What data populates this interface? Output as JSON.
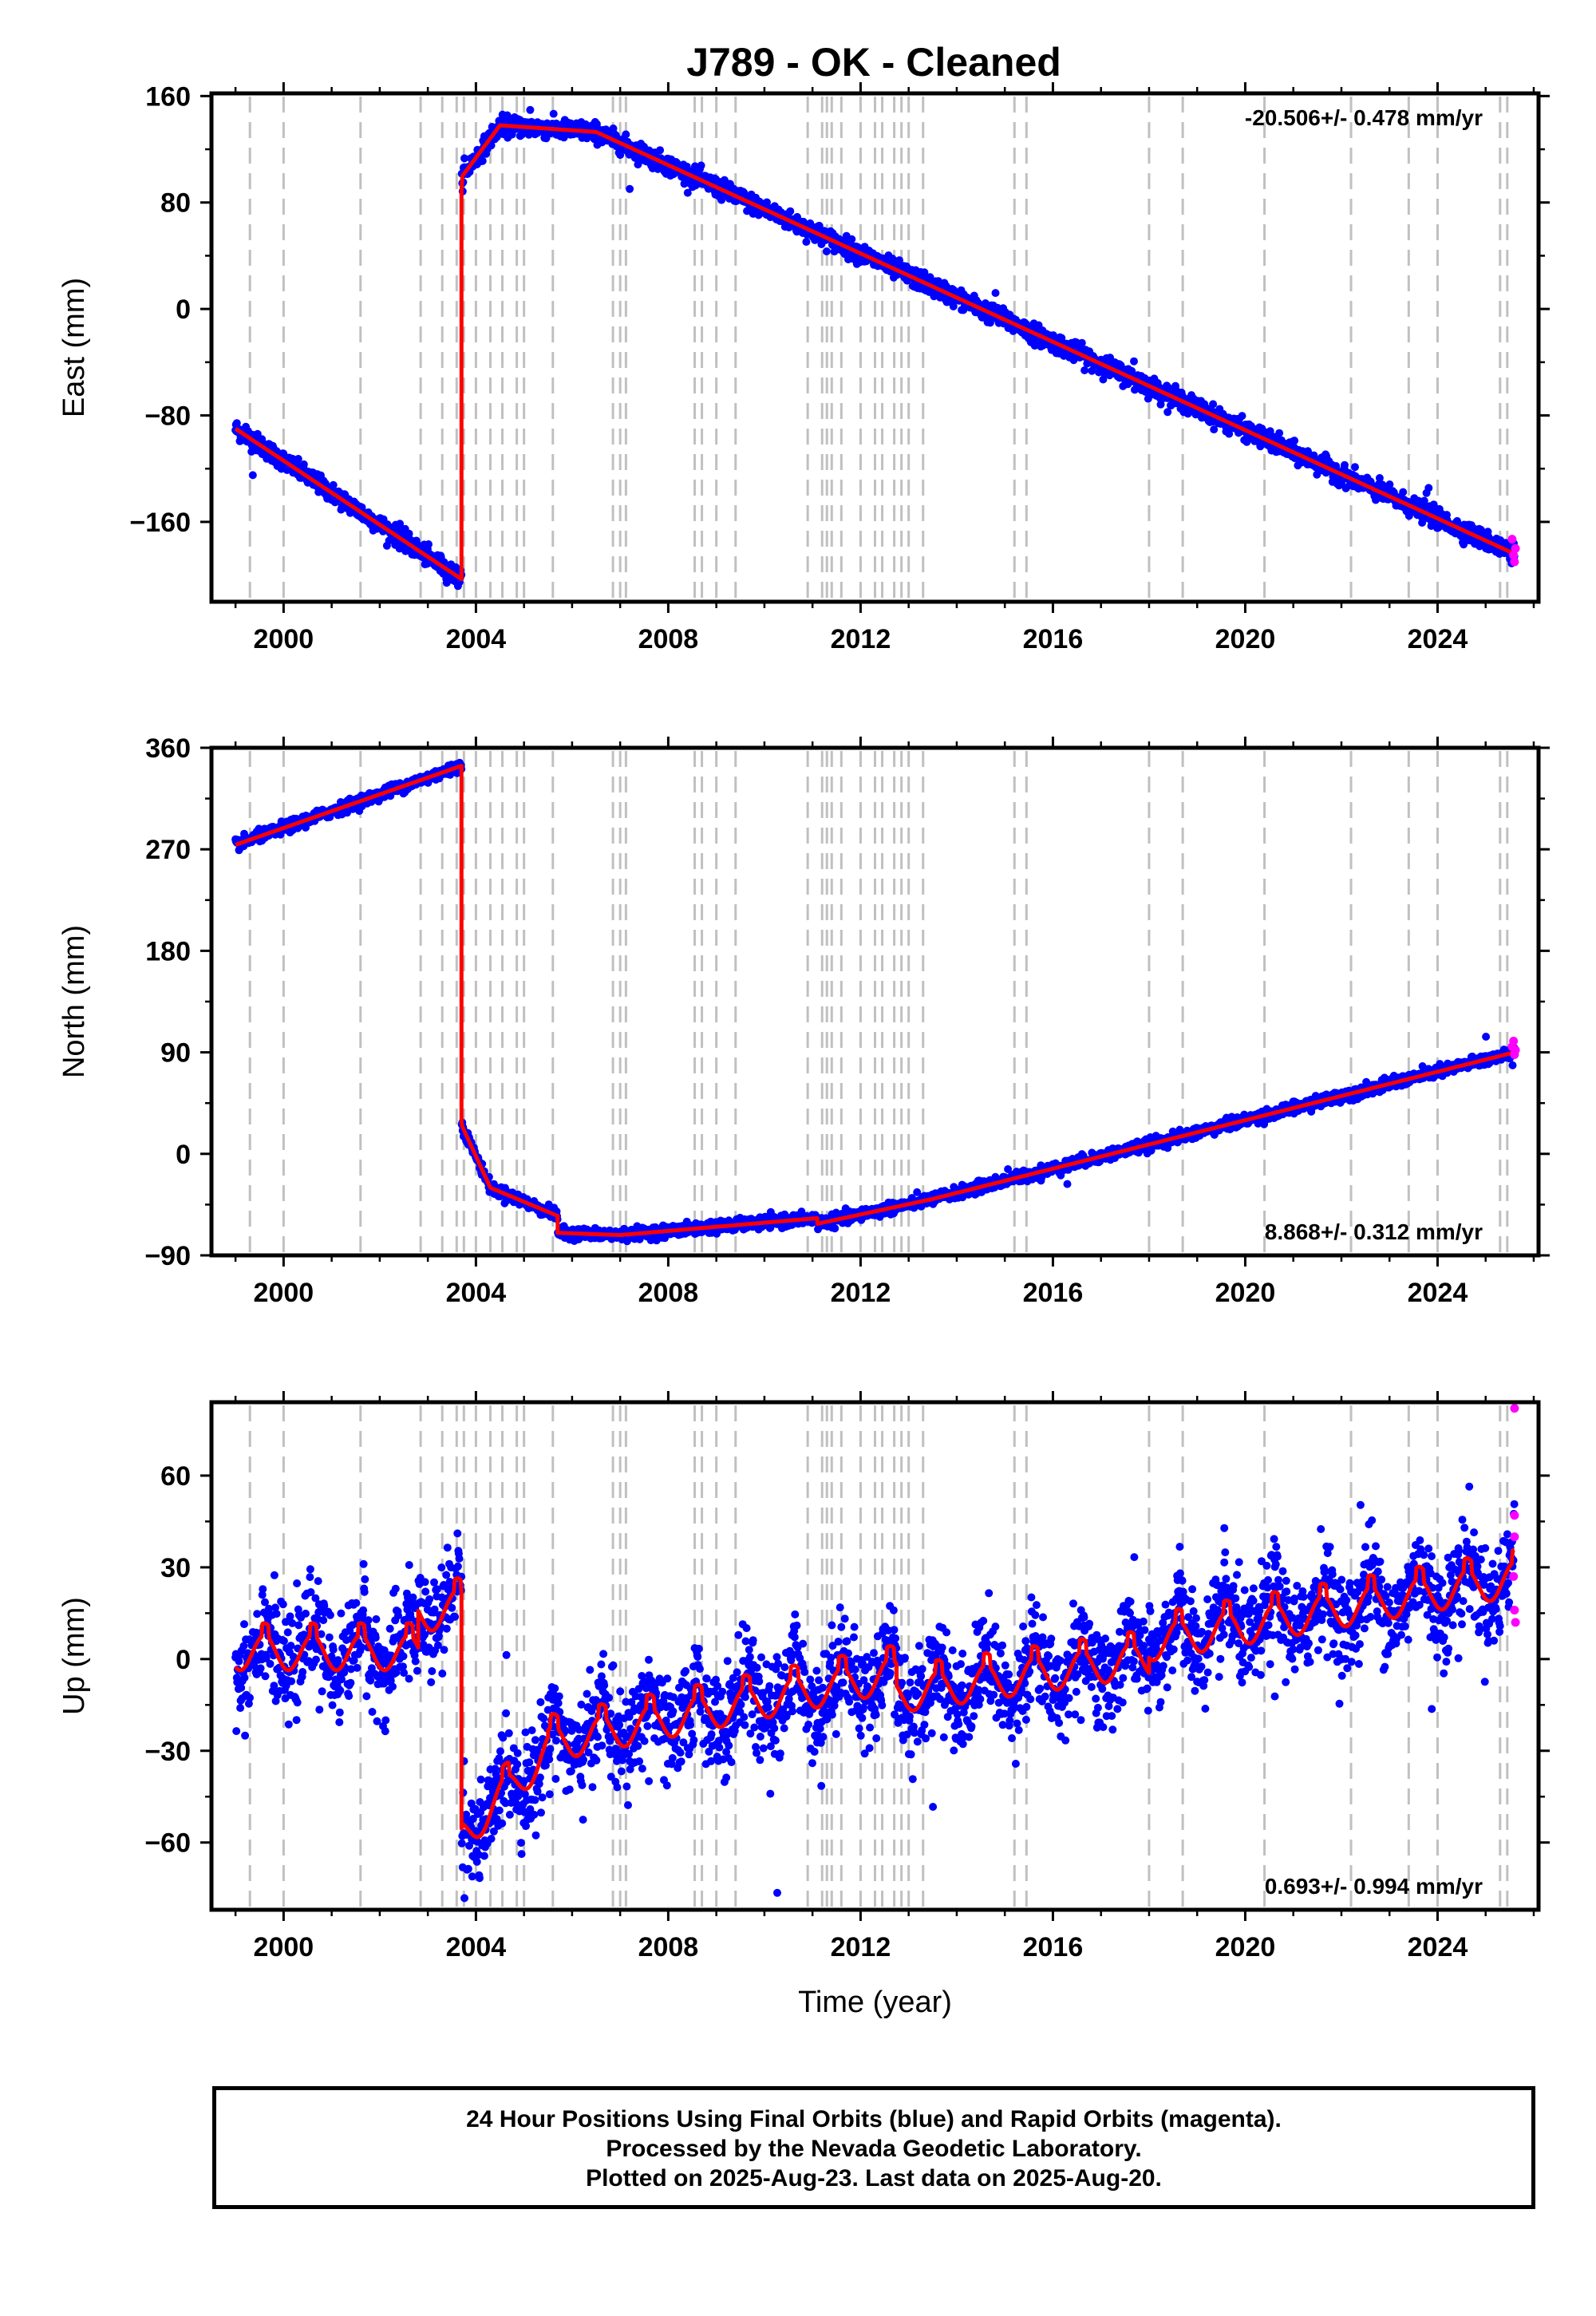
{
  "title": "J789  - OK - Cleaned",
  "footer": {
    "line1": "24 Hour Positions Using Final Orbits (blue) and Rapid Orbits (magenta).",
    "line2": "Processed by the Nevada Geodetic Laboratory.",
    "line3": "Plotted on 2025-Aug-23. Last data on 2025-Aug-20."
  },
  "colors": {
    "final": "#0000ff",
    "rapid": "#ff00ff",
    "model": "#ff0000",
    "event_lines": "#c0c0c0",
    "frame": "#000000"
  },
  "chart_data": [
    {
      "type": "scatter",
      "component": "east",
      "ylabel": "East (mm)",
      "xlabel": "",
      "xlim": [
        1998.5,
        2026.1
      ],
      "ylim": [
        -220,
        162
      ],
      "xticks": [
        2000,
        2004,
        2008,
        2012,
        2016,
        2020,
        2024
      ],
      "yticks": [
        -160,
        -80,
        0,
        80,
        160
      ],
      "ytick_labels": [
        "−160",
        "−80",
        "0",
        "80",
        "160"
      ],
      "rate_text": "-20.506+/- 0.478 mm/yr",
      "rate_position": "top-right",
      "grid": false,
      "model_trend": {
        "segments": [
          {
            "x": [
              1999.0,
              2003.7
            ],
            "y": [
              -90,
              -203
            ]
          },
          {
            "x": [
              2003.7,
              2003.72
            ],
            "y": [
              90,
              100
            ]
          },
          {
            "x": [
              2003.72,
              2004.5
            ],
            "y": [
              100,
              138
            ]
          },
          {
            "x": [
              2004.5,
              2006.5
            ],
            "y": [
              138,
              133
            ]
          },
          {
            "x": [
              2006.5,
              2025.6
            ],
            "y": [
              133,
              -184
            ]
          }
        ]
      },
      "scatter_noise": 3.5,
      "seasonal_amplitude": 0,
      "outlier_count": 20,
      "rapid_points": [
        {
          "x": 2025.55,
          "y": -173
        },
        {
          "x": 2025.58,
          "y": -185
        },
        {
          "x": 2025.6,
          "y": -190
        },
        {
          "x": 2025.62,
          "y": -180
        }
      ]
    },
    {
      "type": "scatter",
      "component": "north",
      "ylabel": "North (mm)",
      "xlabel": "",
      "xlim": [
        1998.5,
        2026.1
      ],
      "ylim": [
        -90,
        360
      ],
      "xticks": [
        2000,
        2004,
        2008,
        2012,
        2016,
        2020,
        2024
      ],
      "yticks": [
        -90,
        0,
        90,
        180,
        270,
        360
      ],
      "ytick_labels": [
        "−90",
        "0",
        "90",
        "180",
        "270",
        "360"
      ],
      "rate_text": "8.868+/- 0.312 mm/yr",
      "rate_position": "bottom-right",
      "grid": false,
      "model_trend": {
        "segments": [
          {
            "x": [
              1999.0,
              2003.7
            ],
            "y": [
              274,
              344
            ]
          },
          {
            "x": [
              2003.7,
              2003.72
            ],
            "y": [
              28,
              24
            ]
          },
          {
            "x": [
              2003.72,
              2004.3
            ],
            "y": [
              24,
              -30
            ]
          },
          {
            "x": [
              2004.3,
              2005.7
            ],
            "y": [
              -30,
              -55
            ]
          },
          {
            "x": [
              2005.7,
              2007.0
            ],
            "y": [
              -70,
              -72
            ]
          },
          {
            "x": [
              2007.0,
              2011.1
            ],
            "y": [
              -72,
              -57
            ]
          },
          {
            "x": [
              2011.1,
              2013.5
            ],
            "y": [
              -62,
              -40
            ]
          },
          {
            "x": [
              2013.5,
              2025.6
            ],
            "y": [
              -40,
              90
            ]
          }
        ]
      },
      "scatter_noise": 2.5,
      "seasonal_amplitude": 0,
      "outlier_count": 8,
      "rapid_points": [
        {
          "x": 2025.55,
          "y": 95
        },
        {
          "x": 2025.58,
          "y": 100
        },
        {
          "x": 2025.6,
          "y": 88
        },
        {
          "x": 2025.62,
          "y": 92
        }
      ]
    },
    {
      "type": "scatter",
      "component": "up",
      "ylabel": "Up (mm)",
      "xlabel": "Time (year)",
      "xlim": [
        1998.5,
        2026.1
      ],
      "ylim": [
        -82,
        84
      ],
      "xticks": [
        2000,
        2004,
        2008,
        2012,
        2016,
        2020,
        2024
      ],
      "yticks": [
        -60,
        -30,
        0,
        30,
        60
      ],
      "ytick_labels": [
        "−60",
        "−30",
        "0",
        "30",
        "60"
      ],
      "rate_text": "0.693+/- 0.994 mm/yr",
      "rate_position": "bottom-right",
      "grid": false,
      "model_trend": {
        "segments": [
          {
            "x": [
              1999.0,
              2002.8
            ],
            "y": [
              2,
              2
            ]
          },
          {
            "x": [
              2002.8,
              2003.7
            ],
            "y": [
              14,
              17
            ]
          },
          {
            "x": [
              2003.7,
              2003.72
            ],
            "y": [
              -60,
              -58
            ]
          },
          {
            "x": [
              2003.72,
              2005.5
            ],
            "y": [
              -58,
              -30
            ]
          },
          {
            "x": [
              2005.5,
              2012.75
            ],
            "y": [
              -28,
              -5
            ]
          },
          {
            "x": [
              2012.75,
              2018.0
            ],
            "y": [
              -12,
              0
            ]
          },
          {
            "x": [
              2018.0,
              2025.6
            ],
            "y": [
              5,
              26
            ]
          }
        ]
      },
      "scatter_noise": 8,
      "seasonal_amplitude": 9,
      "outlier_count": 25,
      "rapid_points": [
        {
          "x": 2025.6,
          "y": 82
        },
        {
          "x": 2025.6,
          "y": 47
        },
        {
          "x": 2025.6,
          "y": 40
        },
        {
          "x": 2025.58,
          "y": 27
        },
        {
          "x": 2025.6,
          "y": 16
        },
        {
          "x": 2025.62,
          "y": 12
        }
      ]
    }
  ],
  "event_lines": [
    1999.3,
    2000.0,
    2001.6,
    2002.85,
    2003.3,
    2003.6,
    2003.75,
    2004.0,
    2004.3,
    2004.55,
    2004.85,
    2005.0,
    2005.6,
    2006.85,
    2007.0,
    2007.12,
    2008.55,
    2008.7,
    2009.0,
    2009.4,
    2010.9,
    2011.2,
    2011.3,
    2011.4,
    2011.6,
    2012.0,
    2012.3,
    2012.45,
    2012.7,
    2012.85,
    2013.0,
    2013.3,
    2015.2,
    2015.45,
    2018.0,
    2018.7,
    2020.4,
    2022.2,
    2023.4,
    2024.0,
    2025.3,
    2025.45
  ]
}
